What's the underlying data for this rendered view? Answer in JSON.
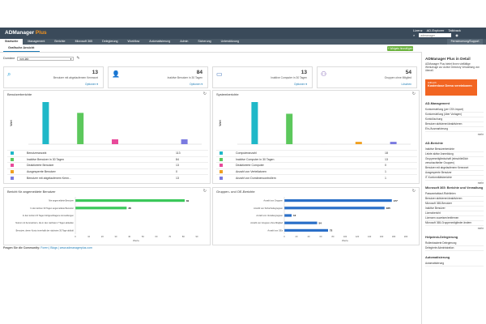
{
  "app": {
    "name_a": "ADManager",
    "name_b": " Plus"
  },
  "topbar": {
    "license": "Lizenz",
    "ad_explorer": "AD-Explorer",
    "talkback": "Talkback",
    "search_placeholder": "admanager"
  },
  "nav": {
    "tabs": [
      "Startseite",
      "Management",
      "Berichte",
      "Microsoft 365",
      "Delegierung",
      "Workflow",
      "Automatisierung",
      "Admin",
      "Sicherung",
      "Unterstützung"
    ],
    "active": 0,
    "support_button": "Fernsteuerung/Support"
  },
  "subtab": {
    "label": "Grafische Ansicht"
  },
  "widgets_button": "+ Widgets hinzufügen",
  "domain": {
    "label": "Domäne",
    "value": "wm.lab"
  },
  "cards": [
    {
      "icon": "search-icon",
      "number": "13",
      "desc": "Benutzer mit abgelaufenem Kennwort",
      "link": "Optionen ▾",
      "color": "#1a9ad6"
    },
    {
      "icon": "user-icon",
      "number": "84",
      "desc": "Inaktive Benutzer in 30 Tagen",
      "link": "Optionen ▾",
      "color": "#3bb54a"
    },
    {
      "icon": "computer-icon",
      "number": "13",
      "desc": "Inaktive Computer in 30 Tagen",
      "link": "Optionen ▾",
      "color": "#3a6fb8"
    },
    {
      "icon": "group-icon",
      "number": "54",
      "desc": "Gruppen ohne Mitglied",
      "link": "Löschen",
      "color": "#6b4aa8"
    }
  ],
  "user_reports": {
    "title": "Benutzerberichte",
    "ylabel": "Wert",
    "items": [
      {
        "label": "Benutzeranzahl",
        "value": 113,
        "color": "#1fb8c8"
      },
      {
        "label": "Inaktive Benutzer in 30 Tagen",
        "value": 84,
        "color": "#5cc85c"
      },
      {
        "label": "Deaktivierte Benutzer",
        "value": 13,
        "color": "#e84a9a"
      },
      {
        "label": "Ausgesperrte Benutzer",
        "value": 0,
        "color": "#f0a020"
      },
      {
        "label": "Benutzer mit abgelaufenem Kenn...",
        "value": 13,
        "color": "#7a7ae0"
      }
    ]
  },
  "system_reports": {
    "title": "Systemberichte",
    "ylabel": "Wert",
    "items": [
      {
        "label": "Computeranzahl",
        "value": 18,
        "color": "#1fb8c8"
      },
      {
        "label": "Inaktive Computer in 30 Tagen",
        "value": 13,
        "color": "#5cc85c"
      },
      {
        "label": "Deaktivierte Computer",
        "value": 0,
        "color": "#e84a9a"
      },
      {
        "label": "Anzahl von Verteilatoren",
        "value": 1,
        "color": "#f0a020"
      },
      {
        "label": "Anzahl von Domänencontrollern",
        "value": 1,
        "color": "#7a7ae0"
      }
    ]
  },
  "logon_reports": {
    "title": "Bericht für angemeldete Benutzer",
    "xlabel": "Werte",
    "xticks": [
      "0",
      "10",
      "20",
      "30",
      "40",
      "50",
      "60",
      "70",
      "80",
      "90"
    ],
    "items": [
      {
        "label": "Nie angemeldete Benutzer",
        "value": 81
      },
      {
        "label": "In den letzten 30 Tagen angemeldete Benutzer",
        "value": 38
      },
      {
        "label": "In den letzten 15 Tagen fehlgeschlagene Anmeldungen",
        "value": 0
      },
      {
        "label": "Nutzer mit Kennwörtern, die in den nächsten 7 Tagen ablaufen",
        "value": 0
      },
      {
        "label": "Benutzer, deren Konto innerhalb der nächsten 30 Tage abläuft",
        "value": 0
      }
    ]
  },
  "group_reports": {
    "title": "Gruppen- und OE-Berichte",
    "xlabel": "Werte",
    "xticks": [
      "0",
      "20",
      "40",
      "60",
      "80",
      "100",
      "120",
      "140",
      "160",
      "180",
      "200"
    ],
    "items": [
      {
        "label": "Anzahl von Gruppen",
        "value": 177
      },
      {
        "label": "Anzahl von Sicherheitsgruppen",
        "value": 165
      },
      {
        "label": "Anzahl von Verteilergruppen",
        "value": 12
      },
      {
        "label": "Anzahl von Gruppen ohne Mitglied",
        "value": 54
      },
      {
        "label": "Anzahl von OEs",
        "value": 72
      }
    ]
  },
  "colors": {
    "topbar": "#3a4a5a",
    "nav": "#4a5a68",
    "accent": "#1a7ab5",
    "logon_bar": "#3bc85a",
    "group_bar": "#2a6fc8",
    "promo": "#f26522",
    "widgets_btn": "#6cb33e"
  },
  "footer": {
    "text": "Fragen Sie die Community:",
    "links": "Foren | Blogs | www.admanagerplus.com"
  },
  "sidebar": {
    "title": "ADManager Plus in Detail",
    "desc": "ADManager Plus bietet Ihnen vielfältige Werkzeuge zur Active Directory Verwaltung von überall.",
    "promo_small": "Hilfreich",
    "promo_big": "Kostenlose Demo vereinbaren",
    "sections": [
      {
        "title": "AD-Management",
        "items": [
          "Kontoerstellung (per CSV-Import)",
          "Kontoerstellung (über Vorlagen)",
          "Kontolöschung",
          "Benutzer aktivieren/deaktivieren",
          "Ein-/Ausmarkierung"
        ],
        "more": "mehr"
      },
      {
        "title": "AD-Berichte",
        "items": [
          "Inaktive Benutzerberichte",
          "Letzte aktive Anmeldung",
          "Gruppenmitgliedschaft (einschließlich verschachtelter Gruppen)",
          "Benutzer mit abgelaufenem Kennwort",
          "Ausgesperrte Benutzer",
          "IT-Konformitätsberichte"
        ],
        "more": "mehr"
      },
      {
        "title": "Microsoft 365: Berichte und Verwaltung",
        "items": [
          "Passwortablauf-Richtlinien",
          "Benutzer aktivieren/deaktivieren",
          "Microsoft 365-Benutzer",
          "Inaktive Benutzer",
          "Lizenzbericht",
          "Lizenzen zuweisen/entfernen",
          "Microsoft 365-Gruppenmitglieder ändern"
        ],
        "more": "mehr"
      },
      {
        "title": "Helpdesk-Delegierung",
        "items": [
          "Rollenbasierte Delegierung",
          "Delegierte Administration"
        ],
        "more": ""
      },
      {
        "title": "Automatisierung",
        "items": [
          "Automatisierung"
        ],
        "more": ""
      }
    ]
  }
}
